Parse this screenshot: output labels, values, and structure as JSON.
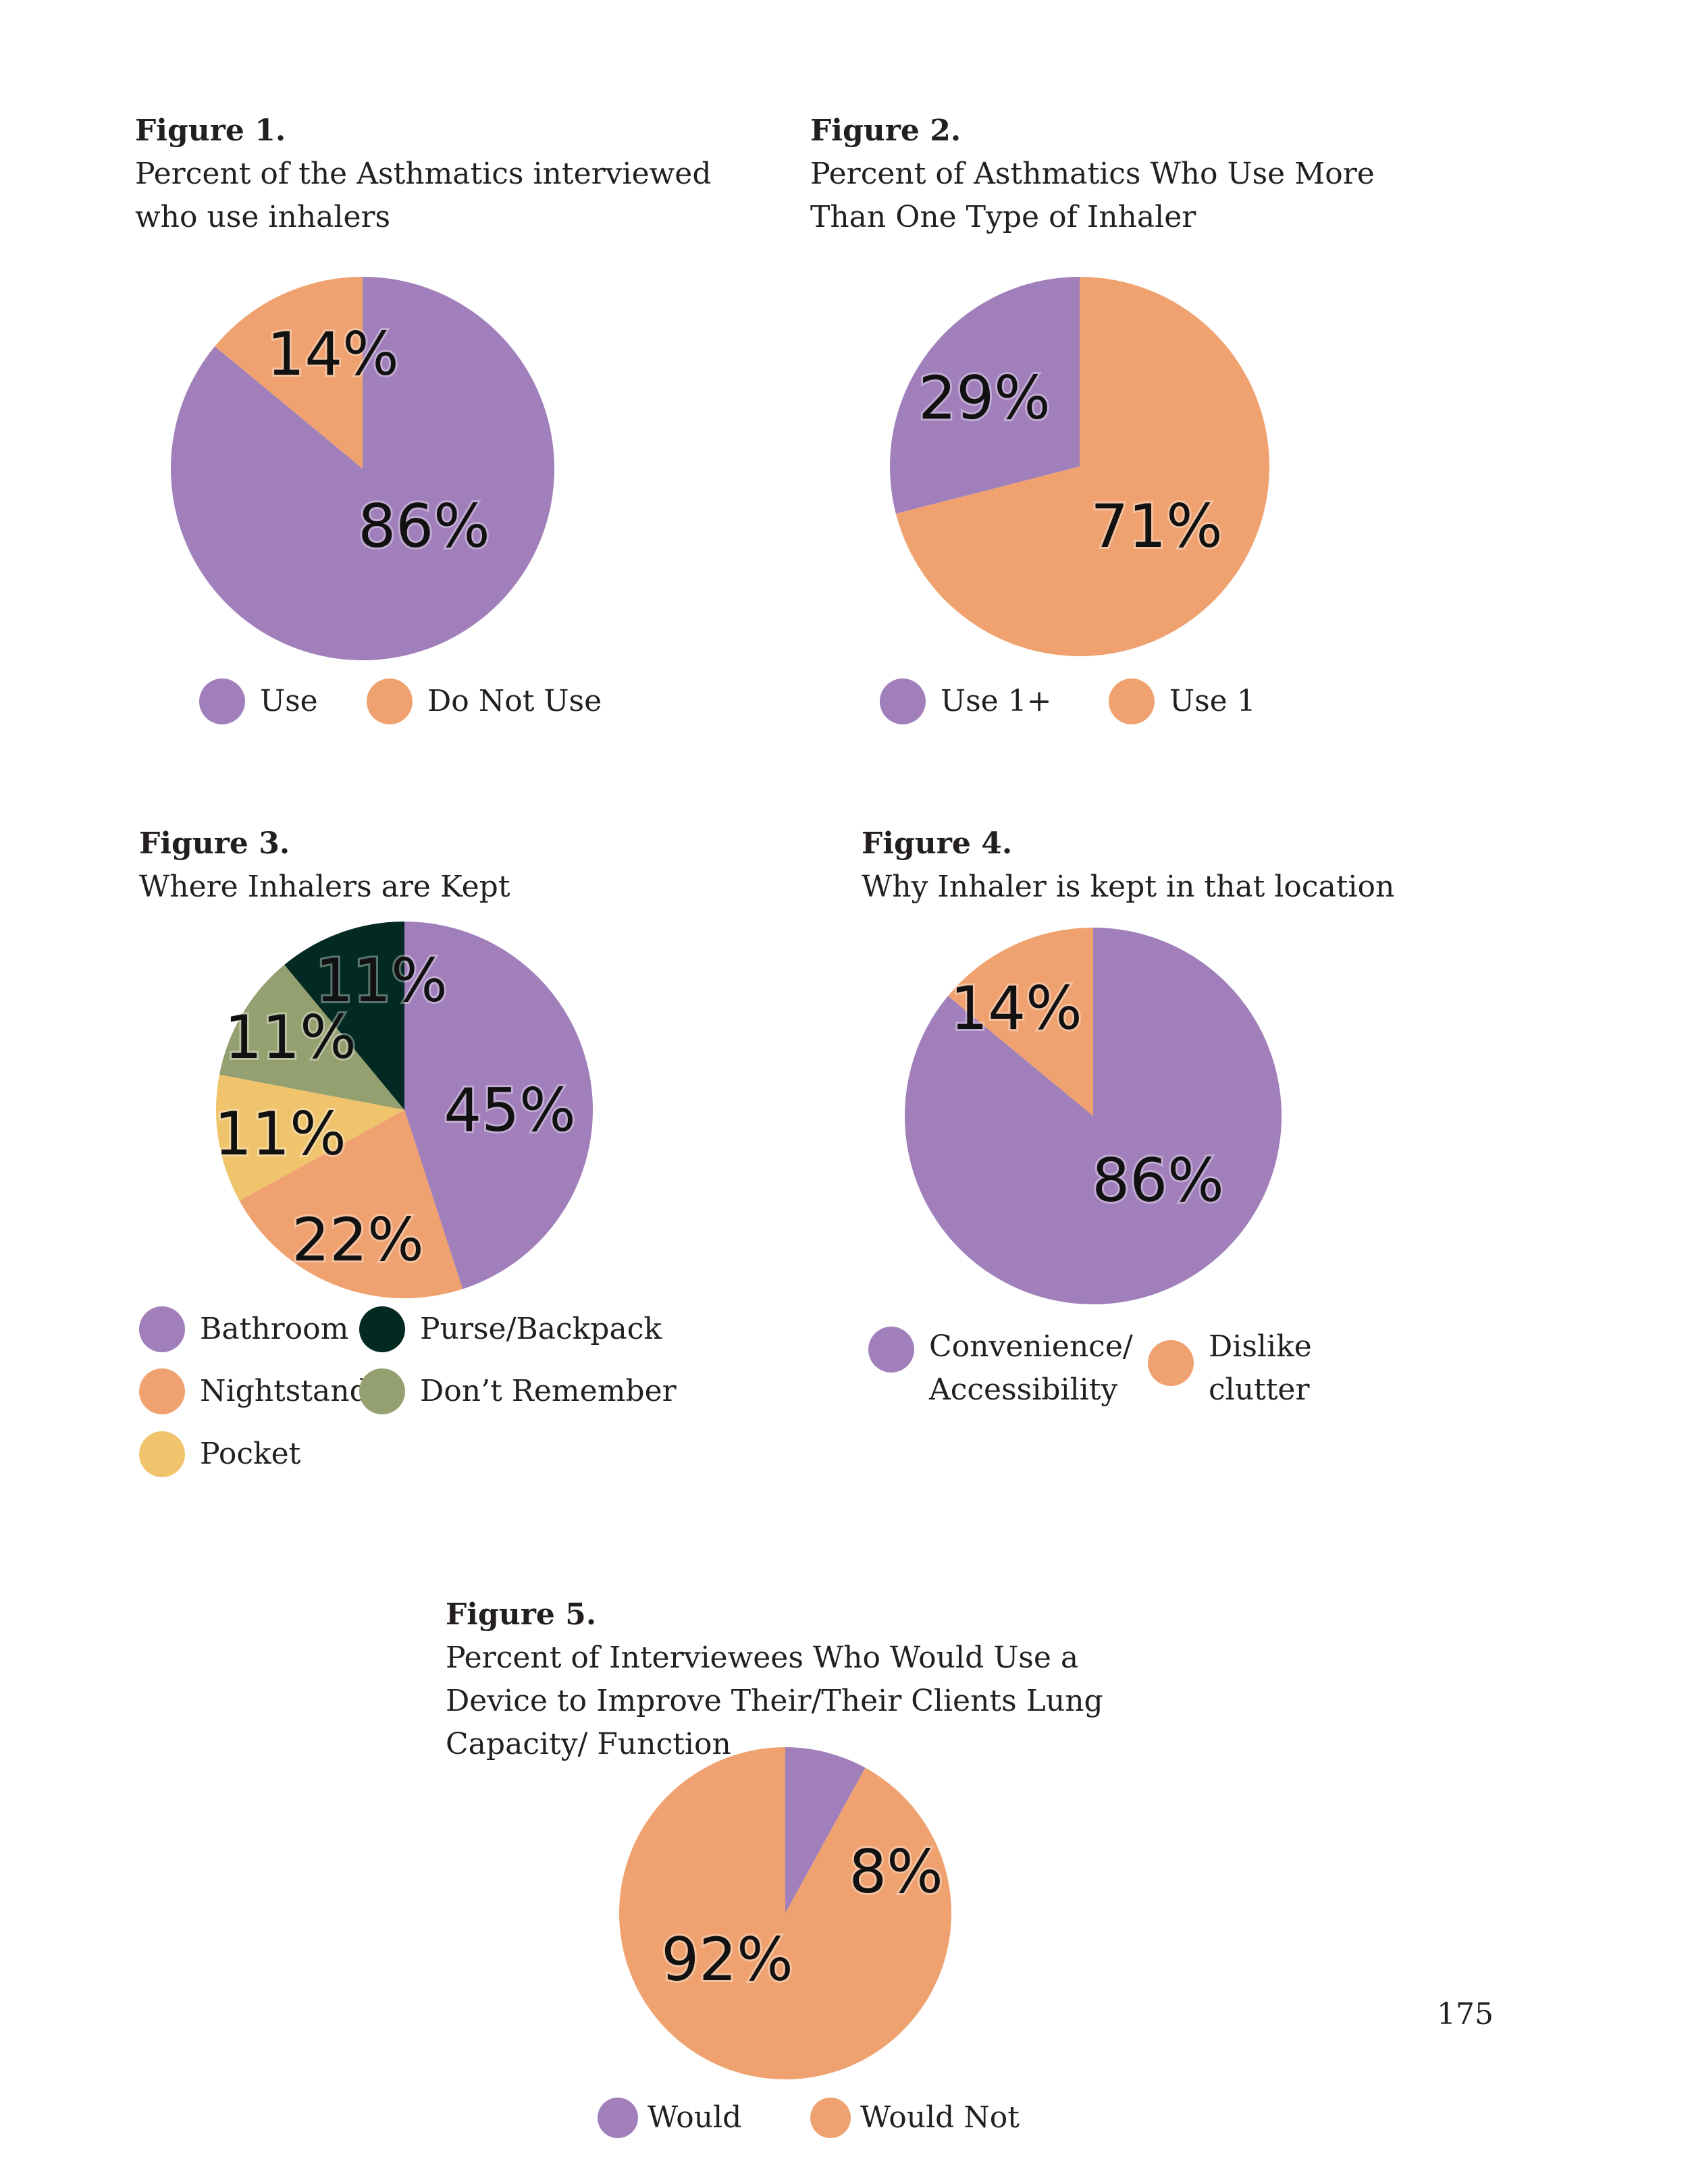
{
  "colors": {
    "purple": "#a07fba",
    "orange": "#efa26f",
    "yellow": "#efc46c",
    "darkgreen": "#032a22",
    "olive": "#95a070"
  },
  "chart_data": [
    {
      "type": "pie",
      "label": "Figure 1.",
      "title": "Percent of the Asthmatics interviewed who use inhalers",
      "start": "12 o'clock, clockwise",
      "slices": [
        {
          "name": "Use",
          "value": 86,
          "label": "86%",
          "color": "purple"
        },
        {
          "name": "Do Not Use",
          "value": 14,
          "label": "14%",
          "color": "orange"
        }
      ],
      "legend": [
        "Use",
        "Do Not Use"
      ]
    },
    {
      "type": "pie",
      "label": "Figure 2.",
      "title": "Percent of Asthmatics Who Use More Than One Type of Inhaler",
      "start": "12 o'clock, clockwise",
      "slices": [
        {
          "name": "Use 1",
          "value": 71,
          "label": "71%",
          "color": "orange"
        },
        {
          "name": "Use 1+",
          "value": 29,
          "label": "29%",
          "color": "purple"
        }
      ],
      "legend": [
        "Use 1+",
        "Use 1"
      ]
    },
    {
      "type": "pie",
      "label": "Figure 3.",
      "title": "Where Inhalers are Kept",
      "start": "12 o'clock, clockwise",
      "slices": [
        {
          "name": "Bathroom",
          "value": 45,
          "label": "45%",
          "color": "purple"
        },
        {
          "name": "Nightstand",
          "value": 22,
          "label": "22%",
          "color": "orange"
        },
        {
          "name": "Pocket",
          "value": 11,
          "label": "11%",
          "color": "yellow"
        },
        {
          "name": "Don’t Remember",
          "value": 11,
          "label": "11%",
          "color": "olive"
        },
        {
          "name": "Purse/Backpack",
          "value": 11,
          "label": "11%",
          "color": "darkgreen"
        }
      ],
      "legend": [
        "Bathroom",
        "Purse/Backpack",
        "Nightstand",
        "Don’t Remember",
        "Pocket"
      ]
    },
    {
      "type": "pie",
      "label": "Figure 4.",
      "title": "Why Inhaler is kept in that location",
      "start": "12 o'clock, clockwise",
      "slices": [
        {
          "name": "Convenience/ Accessibility",
          "value": 86,
          "label": "86%",
          "color": "purple"
        },
        {
          "name": "Dislike clutter",
          "value": 14,
          "label": "14%",
          "color": "orange"
        }
      ],
      "legend": [
        "Convenience/ Accessibility",
        "Dislike clutter"
      ]
    },
    {
      "type": "pie",
      "label": "Figure 5.",
      "title": "Percent of Interviewees Who Would Use a Device to Improve Their/Their Clients Lung Capacity/ Function",
      "start": "12 o'clock, clockwise",
      "slices": [
        {
          "name": "Would",
          "value": 8,
          "label": "8%",
          "color": "purple"
        },
        {
          "name": "Would Not",
          "value": 92,
          "label": "92%",
          "color": "orange"
        }
      ],
      "legend": [
        "Would",
        "Would Not"
      ]
    }
  ],
  "page_number": "175"
}
